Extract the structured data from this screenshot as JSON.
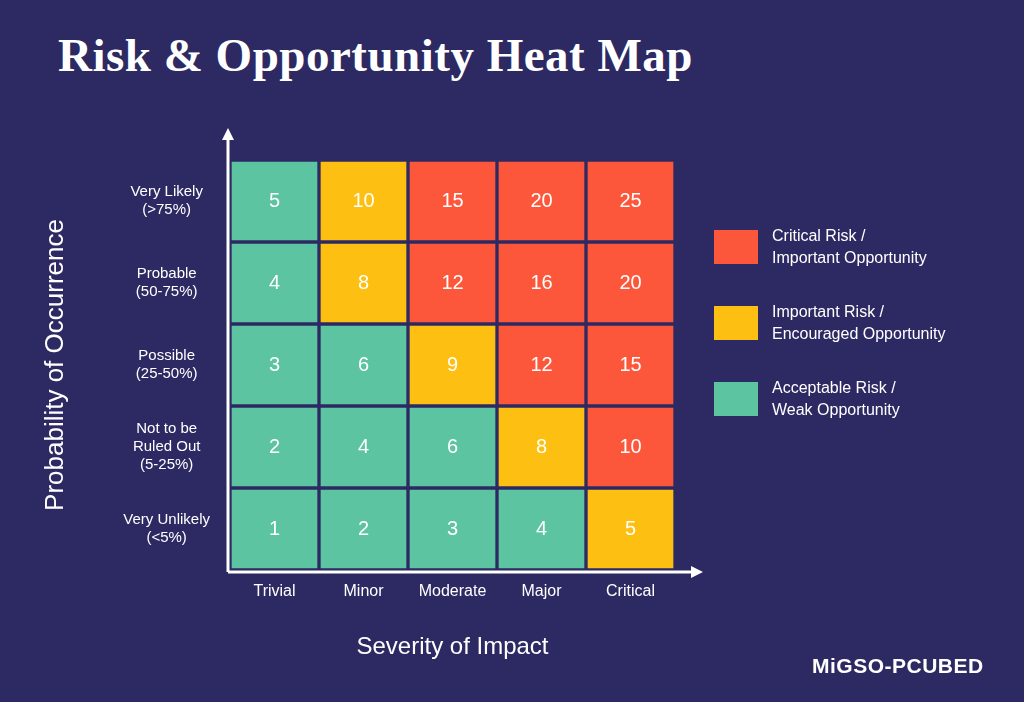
{
  "chart_data": {
    "type": "heatmap",
    "title": "Risk & Opportunity Heat Map",
    "x_label": "Severity of Impact",
    "y_label": "Probability of Occurrence",
    "categories": [
      "Trivial",
      "Minor",
      "Moderate",
      "Major",
      "Critical"
    ],
    "y_categories": [
      [
        "Very Likely",
        "(>75%)"
      ],
      [
        "Probable",
        "(50-75%)"
      ],
      [
        "Possible",
        "(25-50%)"
      ],
      [
        "Not to be",
        "Ruled Out",
        "(5-25%)"
      ],
      [
        "Very Unlikely",
        "(<5%)"
      ]
    ],
    "cells": [
      [
        5,
        10,
        15,
        20,
        25
      ],
      [
        4,
        8,
        12,
        16,
        20
      ],
      [
        3,
        6,
        9,
        12,
        15
      ],
      [
        2,
        4,
        6,
        8,
        10
      ],
      [
        1,
        2,
        3,
        4,
        5
      ]
    ],
    "colors": [
      [
        "#5cc4a0",
        "#fdbf12",
        "#fc573b",
        "#fc573b",
        "#fc573b"
      ],
      [
        "#5cc4a0",
        "#fdbf12",
        "#fc573b",
        "#fc573b",
        "#fc573b"
      ],
      [
        "#5cc4a0",
        "#5cc4a0",
        "#fdbf12",
        "#fc573b",
        "#fc573b"
      ],
      [
        "#5cc4a0",
        "#5cc4a0",
        "#5cc4a0",
        "#fdbf12",
        "#fc573b"
      ],
      [
        "#5cc4a0",
        "#5cc4a0",
        "#5cc4a0",
        "#5cc4a0",
        "#fdbf12"
      ]
    ],
    "data_labels": true,
    "legend": "right",
    "legend_items": [
      {
        "name": [
          "Critical Risk /",
          "Important Opportunity"
        ],
        "color": "#fc573b"
      },
      {
        "name": [
          "Important Risk /",
          "Encouraged Opportunity"
        ],
        "color": "#fdbf12"
      },
      {
        "name": [
          "Acceptable Risk /",
          "Weak Opportunity"
        ],
        "color": "#5cc4a0"
      }
    ],
    "footer": "MiGSO-PCUBED"
  }
}
